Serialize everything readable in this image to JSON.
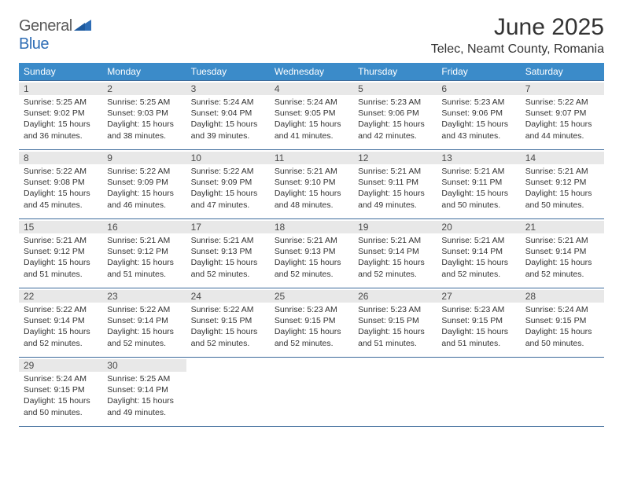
{
  "logo": {
    "text_general": "General",
    "text_blue": "Blue"
  },
  "header": {
    "month_title": "June 2025",
    "location": "Telec, Neamt County, Romania"
  },
  "colors": {
    "header_bg": "#3b8bc9",
    "header_text": "#ffffff",
    "divider": "#3b6a9a",
    "daynum_bg": "#e8e8e8",
    "body_text": "#333333",
    "logo_gray": "#5a5a5a",
    "logo_blue": "#2e6db5"
  },
  "day_names": [
    "Sunday",
    "Monday",
    "Tuesday",
    "Wednesday",
    "Thursday",
    "Friday",
    "Saturday"
  ],
  "weeks": [
    [
      {
        "n": "1",
        "sr": "5:25 AM",
        "ss": "9:02 PM",
        "dl": "15 hours and 36 minutes."
      },
      {
        "n": "2",
        "sr": "5:25 AM",
        "ss": "9:03 PM",
        "dl": "15 hours and 38 minutes."
      },
      {
        "n": "3",
        "sr": "5:24 AM",
        "ss": "9:04 PM",
        "dl": "15 hours and 39 minutes."
      },
      {
        "n": "4",
        "sr": "5:24 AM",
        "ss": "9:05 PM",
        "dl": "15 hours and 41 minutes."
      },
      {
        "n": "5",
        "sr": "5:23 AM",
        "ss": "9:06 PM",
        "dl": "15 hours and 42 minutes."
      },
      {
        "n": "6",
        "sr": "5:23 AM",
        "ss": "9:06 PM",
        "dl": "15 hours and 43 minutes."
      },
      {
        "n": "7",
        "sr": "5:22 AM",
        "ss": "9:07 PM",
        "dl": "15 hours and 44 minutes."
      }
    ],
    [
      {
        "n": "8",
        "sr": "5:22 AM",
        "ss": "9:08 PM",
        "dl": "15 hours and 45 minutes."
      },
      {
        "n": "9",
        "sr": "5:22 AM",
        "ss": "9:09 PM",
        "dl": "15 hours and 46 minutes."
      },
      {
        "n": "10",
        "sr": "5:22 AM",
        "ss": "9:09 PM",
        "dl": "15 hours and 47 minutes."
      },
      {
        "n": "11",
        "sr": "5:21 AM",
        "ss": "9:10 PM",
        "dl": "15 hours and 48 minutes."
      },
      {
        "n": "12",
        "sr": "5:21 AM",
        "ss": "9:11 PM",
        "dl": "15 hours and 49 minutes."
      },
      {
        "n": "13",
        "sr": "5:21 AM",
        "ss": "9:11 PM",
        "dl": "15 hours and 50 minutes."
      },
      {
        "n": "14",
        "sr": "5:21 AM",
        "ss": "9:12 PM",
        "dl": "15 hours and 50 minutes."
      }
    ],
    [
      {
        "n": "15",
        "sr": "5:21 AM",
        "ss": "9:12 PM",
        "dl": "15 hours and 51 minutes."
      },
      {
        "n": "16",
        "sr": "5:21 AM",
        "ss": "9:12 PM",
        "dl": "15 hours and 51 minutes."
      },
      {
        "n": "17",
        "sr": "5:21 AM",
        "ss": "9:13 PM",
        "dl": "15 hours and 52 minutes."
      },
      {
        "n": "18",
        "sr": "5:21 AM",
        "ss": "9:13 PM",
        "dl": "15 hours and 52 minutes."
      },
      {
        "n": "19",
        "sr": "5:21 AM",
        "ss": "9:14 PM",
        "dl": "15 hours and 52 minutes."
      },
      {
        "n": "20",
        "sr": "5:21 AM",
        "ss": "9:14 PM",
        "dl": "15 hours and 52 minutes."
      },
      {
        "n": "21",
        "sr": "5:21 AM",
        "ss": "9:14 PM",
        "dl": "15 hours and 52 minutes."
      }
    ],
    [
      {
        "n": "22",
        "sr": "5:22 AM",
        "ss": "9:14 PM",
        "dl": "15 hours and 52 minutes."
      },
      {
        "n": "23",
        "sr": "5:22 AM",
        "ss": "9:14 PM",
        "dl": "15 hours and 52 minutes."
      },
      {
        "n": "24",
        "sr": "5:22 AM",
        "ss": "9:15 PM",
        "dl": "15 hours and 52 minutes."
      },
      {
        "n": "25",
        "sr": "5:23 AM",
        "ss": "9:15 PM",
        "dl": "15 hours and 52 minutes."
      },
      {
        "n": "26",
        "sr": "5:23 AM",
        "ss": "9:15 PM",
        "dl": "15 hours and 51 minutes."
      },
      {
        "n": "27",
        "sr": "5:23 AM",
        "ss": "9:15 PM",
        "dl": "15 hours and 51 minutes."
      },
      {
        "n": "28",
        "sr": "5:24 AM",
        "ss": "9:15 PM",
        "dl": "15 hours and 50 minutes."
      }
    ],
    [
      {
        "n": "29",
        "sr": "5:24 AM",
        "ss": "9:15 PM",
        "dl": "15 hours and 50 minutes."
      },
      {
        "n": "30",
        "sr": "5:25 AM",
        "ss": "9:14 PM",
        "dl": "15 hours and 49 minutes."
      },
      null,
      null,
      null,
      null,
      null
    ]
  ],
  "labels": {
    "sunrise": "Sunrise:",
    "sunset": "Sunset:",
    "daylight": "Daylight:"
  }
}
